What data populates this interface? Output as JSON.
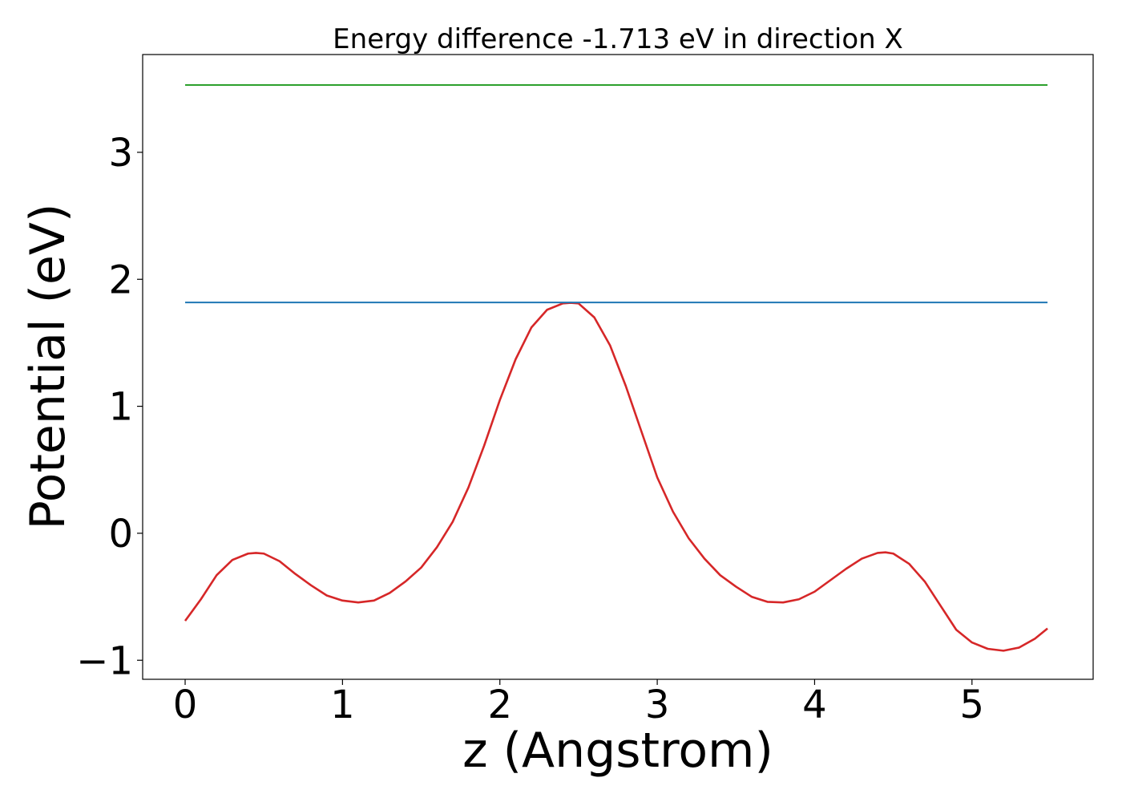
{
  "chart_data": {
    "type": "line",
    "title": "Energy difference -1.713 eV in direction X",
    "xlabel": "z (Angstrom)",
    "ylabel": "Potential (eV)",
    "xlim": [
      -0.27,
      5.77
    ],
    "ylim": [
      -1.15,
      3.77
    ],
    "xticks": [
      0,
      1,
      2,
      3,
      4,
      5
    ],
    "yticks": [
      -1,
      0,
      1,
      2,
      3
    ],
    "xtick_labels": [
      "0",
      "1",
      "2",
      "3",
      "4",
      "5"
    ],
    "ytick_labels": [
      "−1",
      "0",
      "1",
      "2",
      "3"
    ],
    "grid": false,
    "series": [
      {
        "color": "#d62728",
        "x": [
          0,
          0.1,
          0.2,
          0.3,
          0.4,
          0.45,
          0.5,
          0.6,
          0.7,
          0.8,
          0.9,
          1.0,
          1.1,
          1.2,
          1.3,
          1.4,
          1.5,
          1.6,
          1.7,
          1.8,
          1.9,
          2.0,
          2.1,
          2.2,
          2.3,
          2.4,
          2.45,
          2.5,
          2.6,
          2.7,
          2.8,
          2.9,
          3.0,
          3.1,
          3.2,
          3.3,
          3.4,
          3.5,
          3.6,
          3.7,
          3.8,
          3.9,
          4.0,
          4.1,
          4.2,
          4.3,
          4.4,
          4.45,
          4.5,
          4.6,
          4.7,
          4.8,
          4.9,
          5.0,
          5.1,
          5.2,
          5.3,
          5.4,
          5.48
        ],
        "y": [
          -0.69,
          -0.52,
          -0.33,
          -0.21,
          -0.16,
          -0.155,
          -0.16,
          -0.22,
          -0.32,
          -0.41,
          -0.49,
          -0.53,
          -0.545,
          -0.53,
          -0.47,
          -0.38,
          -0.27,
          -0.11,
          0.09,
          0.36,
          0.69,
          1.05,
          1.37,
          1.62,
          1.76,
          1.81,
          1.815,
          1.81,
          1.7,
          1.48,
          1.16,
          0.8,
          0.44,
          0.17,
          -0.04,
          -0.2,
          -0.33,
          -0.42,
          -0.5,
          -0.54,
          -0.545,
          -0.52,
          -0.46,
          -0.37,
          -0.28,
          -0.2,
          -0.155,
          -0.15,
          -0.16,
          -0.24,
          -0.38,
          -0.57,
          -0.76,
          -0.86,
          -0.91,
          -0.925,
          -0.9,
          -0.83,
          -0.75
        ]
      },
      {
        "color": "#1f77b4",
        "x": [
          0,
          5.48
        ],
        "y": [
          1.818,
          1.818
        ]
      },
      {
        "color": "#2ca02c",
        "x": [
          0,
          5.48
        ],
        "y": [
          3.53,
          3.53
        ]
      }
    ]
  }
}
